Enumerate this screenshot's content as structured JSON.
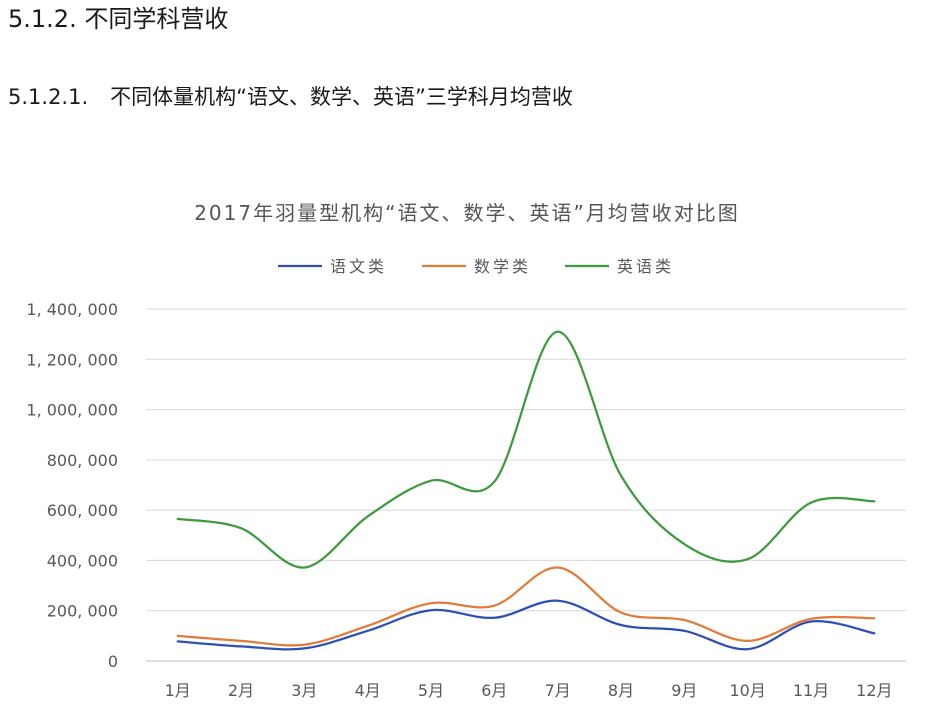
{
  "section": {
    "heading_number": "5.1.2.",
    "heading_text": "不同学科营收",
    "sub_number": "5.1.2.1.",
    "sub_text": "不同体量机构“语文、数学、英语”三学科月均营收"
  },
  "chart_data": {
    "type": "line",
    "smooth": true,
    "title": "2017年羽量型机构“语文、数学、英语”月均营收对比图",
    "xlabel": "",
    "ylabel": "",
    "categories": [
      "1月",
      "2月",
      "3月",
      "4月",
      "5月",
      "6月",
      "7月",
      "8月",
      "9月",
      "10月",
      "11月",
      "12月"
    ],
    "ylim": [
      0,
      1400000
    ],
    "yticks": [
      0,
      200000,
      400000,
      600000,
      800000,
      1000000,
      1200000,
      1400000
    ],
    "ytick_labels": [
      "0",
      "200, 000",
      "400, 000",
      "600, 000",
      "800, 000",
      "1, 000, 000",
      "1, 200, 000",
      "1, 400, 000"
    ],
    "grid": true,
    "legend_position": "top",
    "series": [
      {
        "name": "语文类",
        "color": "#2e4fb5",
        "values": [
          78000,
          58000,
          50000,
          120000,
          202000,
          172000,
          240000,
          143000,
          120000,
          47000,
          157000,
          110000
        ]
      },
      {
        "name": "数学类",
        "color": "#e07b39",
        "values": [
          100000,
          80000,
          65000,
          140000,
          230000,
          220000,
          372000,
          193000,
          163000,
          80000,
          168000,
          170000
        ]
      },
      {
        "name": "英语类",
        "color": "#3d9a3d",
        "values": [
          565000,
          528000,
          372000,
          575000,
          717000,
          713000,
          1310000,
          737000,
          465000,
          405000,
          630000,
          635000
        ]
      }
    ]
  }
}
